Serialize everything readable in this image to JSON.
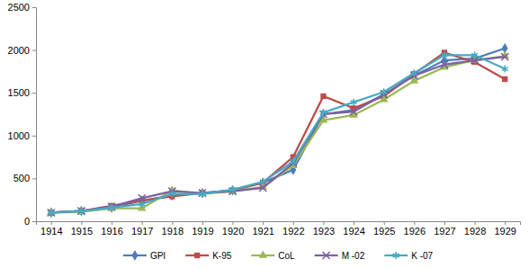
{
  "chart_data": {
    "type": "line",
    "categories": [
      "1914",
      "1915",
      "1916",
      "1917",
      "1918",
      "1919",
      "1920",
      "1921",
      "1922",
      "1923",
      "1924",
      "1925",
      "1926",
      "1927",
      "1928",
      "1929"
    ],
    "series": [
      {
        "name": "GPI",
        "color": "#4a7ebb",
        "marker": "diamond",
        "line_style": "solid",
        "values": [
          100,
          120,
          160,
          240,
          300,
          330,
          360,
          450,
          600,
          1250,
          1300,
          1480,
          1700,
          1880,
          1900,
          2020
        ]
      },
      {
        "name": "K-95",
        "color": "#be4b48",
        "marker": "square",
        "line_style": "solid",
        "values": [
          100,
          120,
          180,
          240,
          290,
          330,
          360,
          450,
          750,
          1460,
          1320,
          1460,
          1720,
          1970,
          1860,
          1660
        ]
      },
      {
        "name": "CoL",
        "color": "#98b954",
        "marker": "triangle",
        "line_style": "solid",
        "values": [
          100,
          110,
          150,
          150,
          360,
          320,
          350,
          400,
          650,
          1180,
          1240,
          1420,
          1640,
          1800,
          1880,
          1930
        ]
      },
      {
        "name": "M -02",
        "color": "#7d60a0",
        "marker": "x",
        "line_style": "solid",
        "values": [
          100,
          120,
          170,
          270,
          350,
          330,
          350,
          390,
          680,
          1250,
          1280,
          1480,
          1700,
          1830,
          1880,
          1920
        ]
      },
      {
        "name": "K -07",
        "color": "#46aac5",
        "marker": "asterisk",
        "line_style": "solid",
        "values": [
          100,
          120,
          160,
          200,
          320,
          320,
          370,
          460,
          700,
          1270,
          1390,
          1510,
          1730,
          1940,
          1940,
          1780
        ]
      }
    ],
    "ylim": [
      0,
      2500
    ],
    "yticks": [
      0,
      500,
      1000,
      1500,
      2000,
      2500
    ],
    "grid": false,
    "legend": "bottom"
  }
}
